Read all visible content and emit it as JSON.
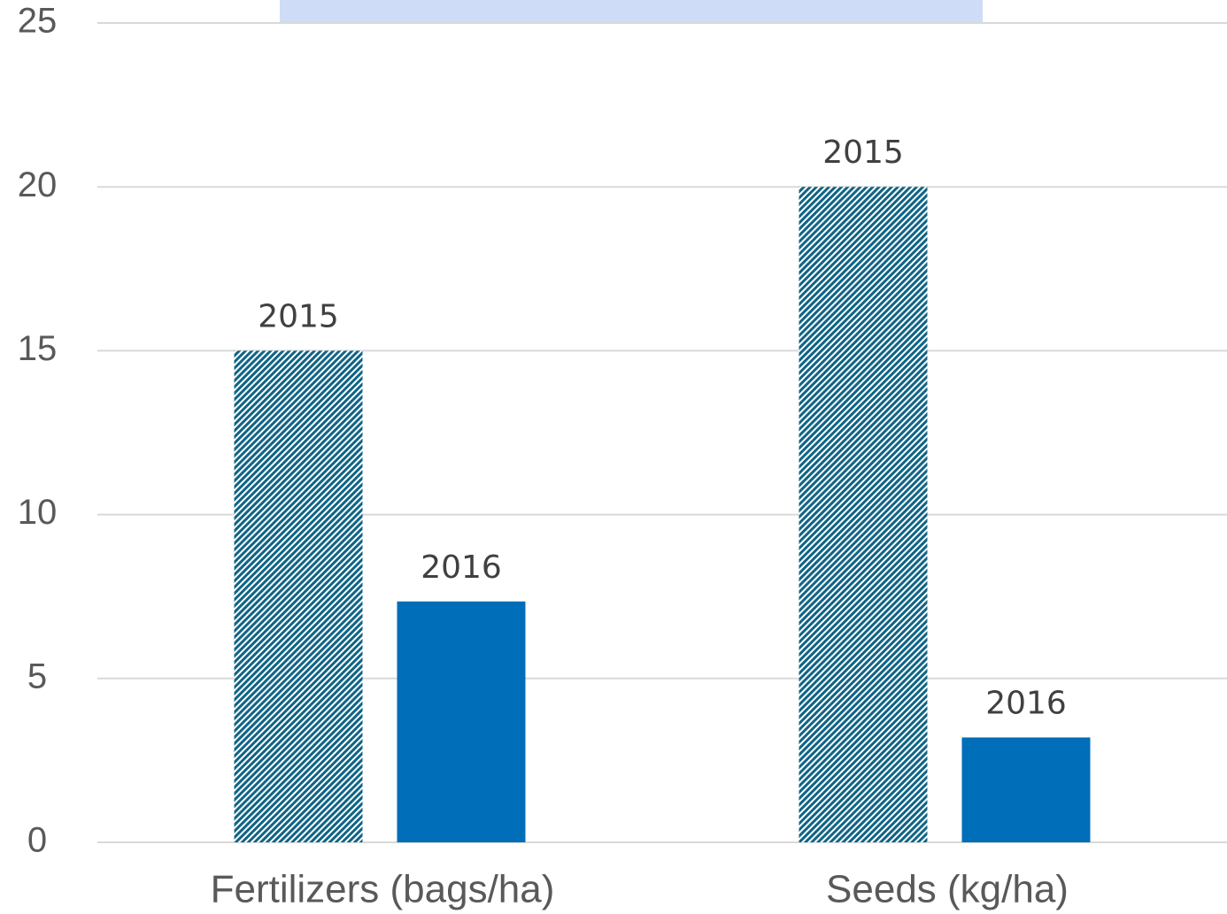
{
  "chart_data": {
    "type": "bar",
    "categories": [
      "Fertilizers (bags/ha)",
      "Seeds (kg/ha)"
    ],
    "series": [
      {
        "name": "2015",
        "color": "#0f6485",
        "hatch": true,
        "values": [
          15,
          20
        ]
      },
      {
        "name": "2016",
        "color": "#006eb8",
        "hatch": false,
        "values": [
          7.35,
          3.2
        ]
      }
    ],
    "ylim": [
      0,
      25
    ],
    "yticks": [
      0,
      5,
      10,
      15,
      20,
      25
    ],
    "grid": true
  }
}
